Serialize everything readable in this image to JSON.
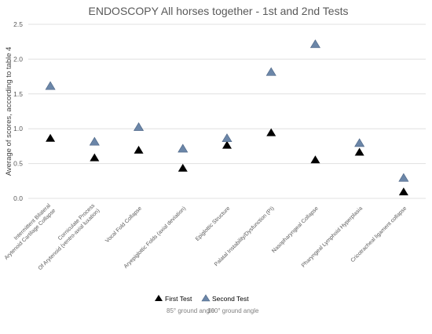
{
  "chart_data": {
    "type": "scatter",
    "title": "ENDOSCOPY All horses together - 1st and 2nd Tests",
    "ylabel": "Average of scores, according to table 4",
    "xlabel": "",
    "ylim": [
      0,
      2.5
    ],
    "yticks": [
      "0.0",
      "0.5",
      "1.0",
      "1.5",
      "2.0",
      "2.5"
    ],
    "ytick_values": [
      0,
      0.5,
      1.0,
      1.5,
      2.0,
      2.5
    ],
    "grid": true,
    "legend_position": "bottom",
    "categories": [
      [
        "Intermittent Bilateral",
        "Arytenoid Cartilage Collapse"
      ],
      [
        "Corniculate Process",
        "Of Arytenoid (ventro-axial luxation)"
      ],
      [
        "Vocal Fold Collapse"
      ],
      [
        "Aryepiglottic Folds (axial deviation)"
      ],
      [
        "Epiglottic Structure"
      ],
      [
        "Palatal Instability/Dysfunction (PI)"
      ],
      [
        "Nasopharyngeal Collapse"
      ],
      [
        "Pharyngeal Lymphoid Hyperplasia"
      ],
      [
        "Cricotracheal ligament collapse"
      ]
    ],
    "series": [
      {
        "name": "First Test",
        "marker": "triangle",
        "color": "#000000",
        "values": [
          0.87,
          0.59,
          0.7,
          0.44,
          0.77,
          0.95,
          0.56,
          0.67,
          0.1
        ]
      },
      {
        "name": "Second Test",
        "marker": "triangle",
        "color": "#6b86a8",
        "values": [
          1.62,
          0.82,
          1.03,
          0.72,
          0.87,
          1.82,
          2.22,
          0.8,
          0.3
        ]
      }
    ],
    "legend_notes": [
      "85° ground angle",
      "100° ground angle"
    ]
  }
}
